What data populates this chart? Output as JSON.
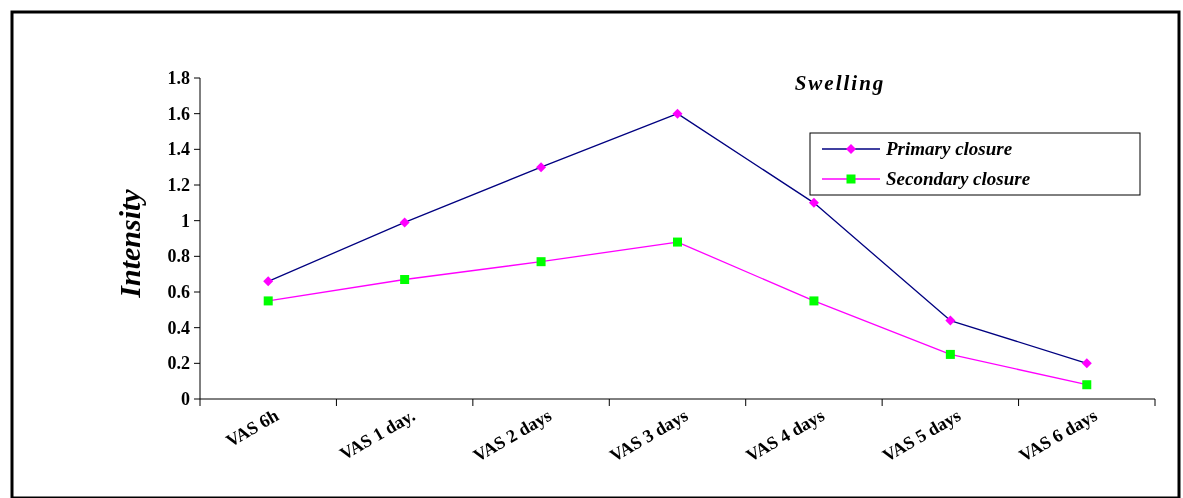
{
  "chart_data": {
    "type": "line",
    "title": "Swelling",
    "ylabel": "Intensity",
    "categories": [
      "VAS 6h",
      "VAS 1 day.",
      "VAS 2 days",
      "VAS 3 days",
      "VAS 4 days",
      "VAS 5 days",
      "VAS 6 days"
    ],
    "series": [
      {
        "name": "Primary closure",
        "color": "#ff00ff",
        "marker": "diamond",
        "values": [
          0.66,
          0.99,
          1.3,
          1.6,
          1.1,
          0.44,
          0.2
        ]
      },
      {
        "name": "Secondary closure",
        "color": "#00ff00",
        "marker": "square",
        "values": [
          0.55,
          0.67,
          0.77,
          0.88,
          0.55,
          0.25,
          0.08
        ]
      }
    ],
    "ylim": [
      0,
      1.8
    ],
    "yticks": [
      0,
      0.2,
      0.4,
      0.6,
      0.8,
      1,
      1.2,
      1.4,
      1.6,
      1.8
    ],
    "grid": false,
    "legend": "top right"
  }
}
